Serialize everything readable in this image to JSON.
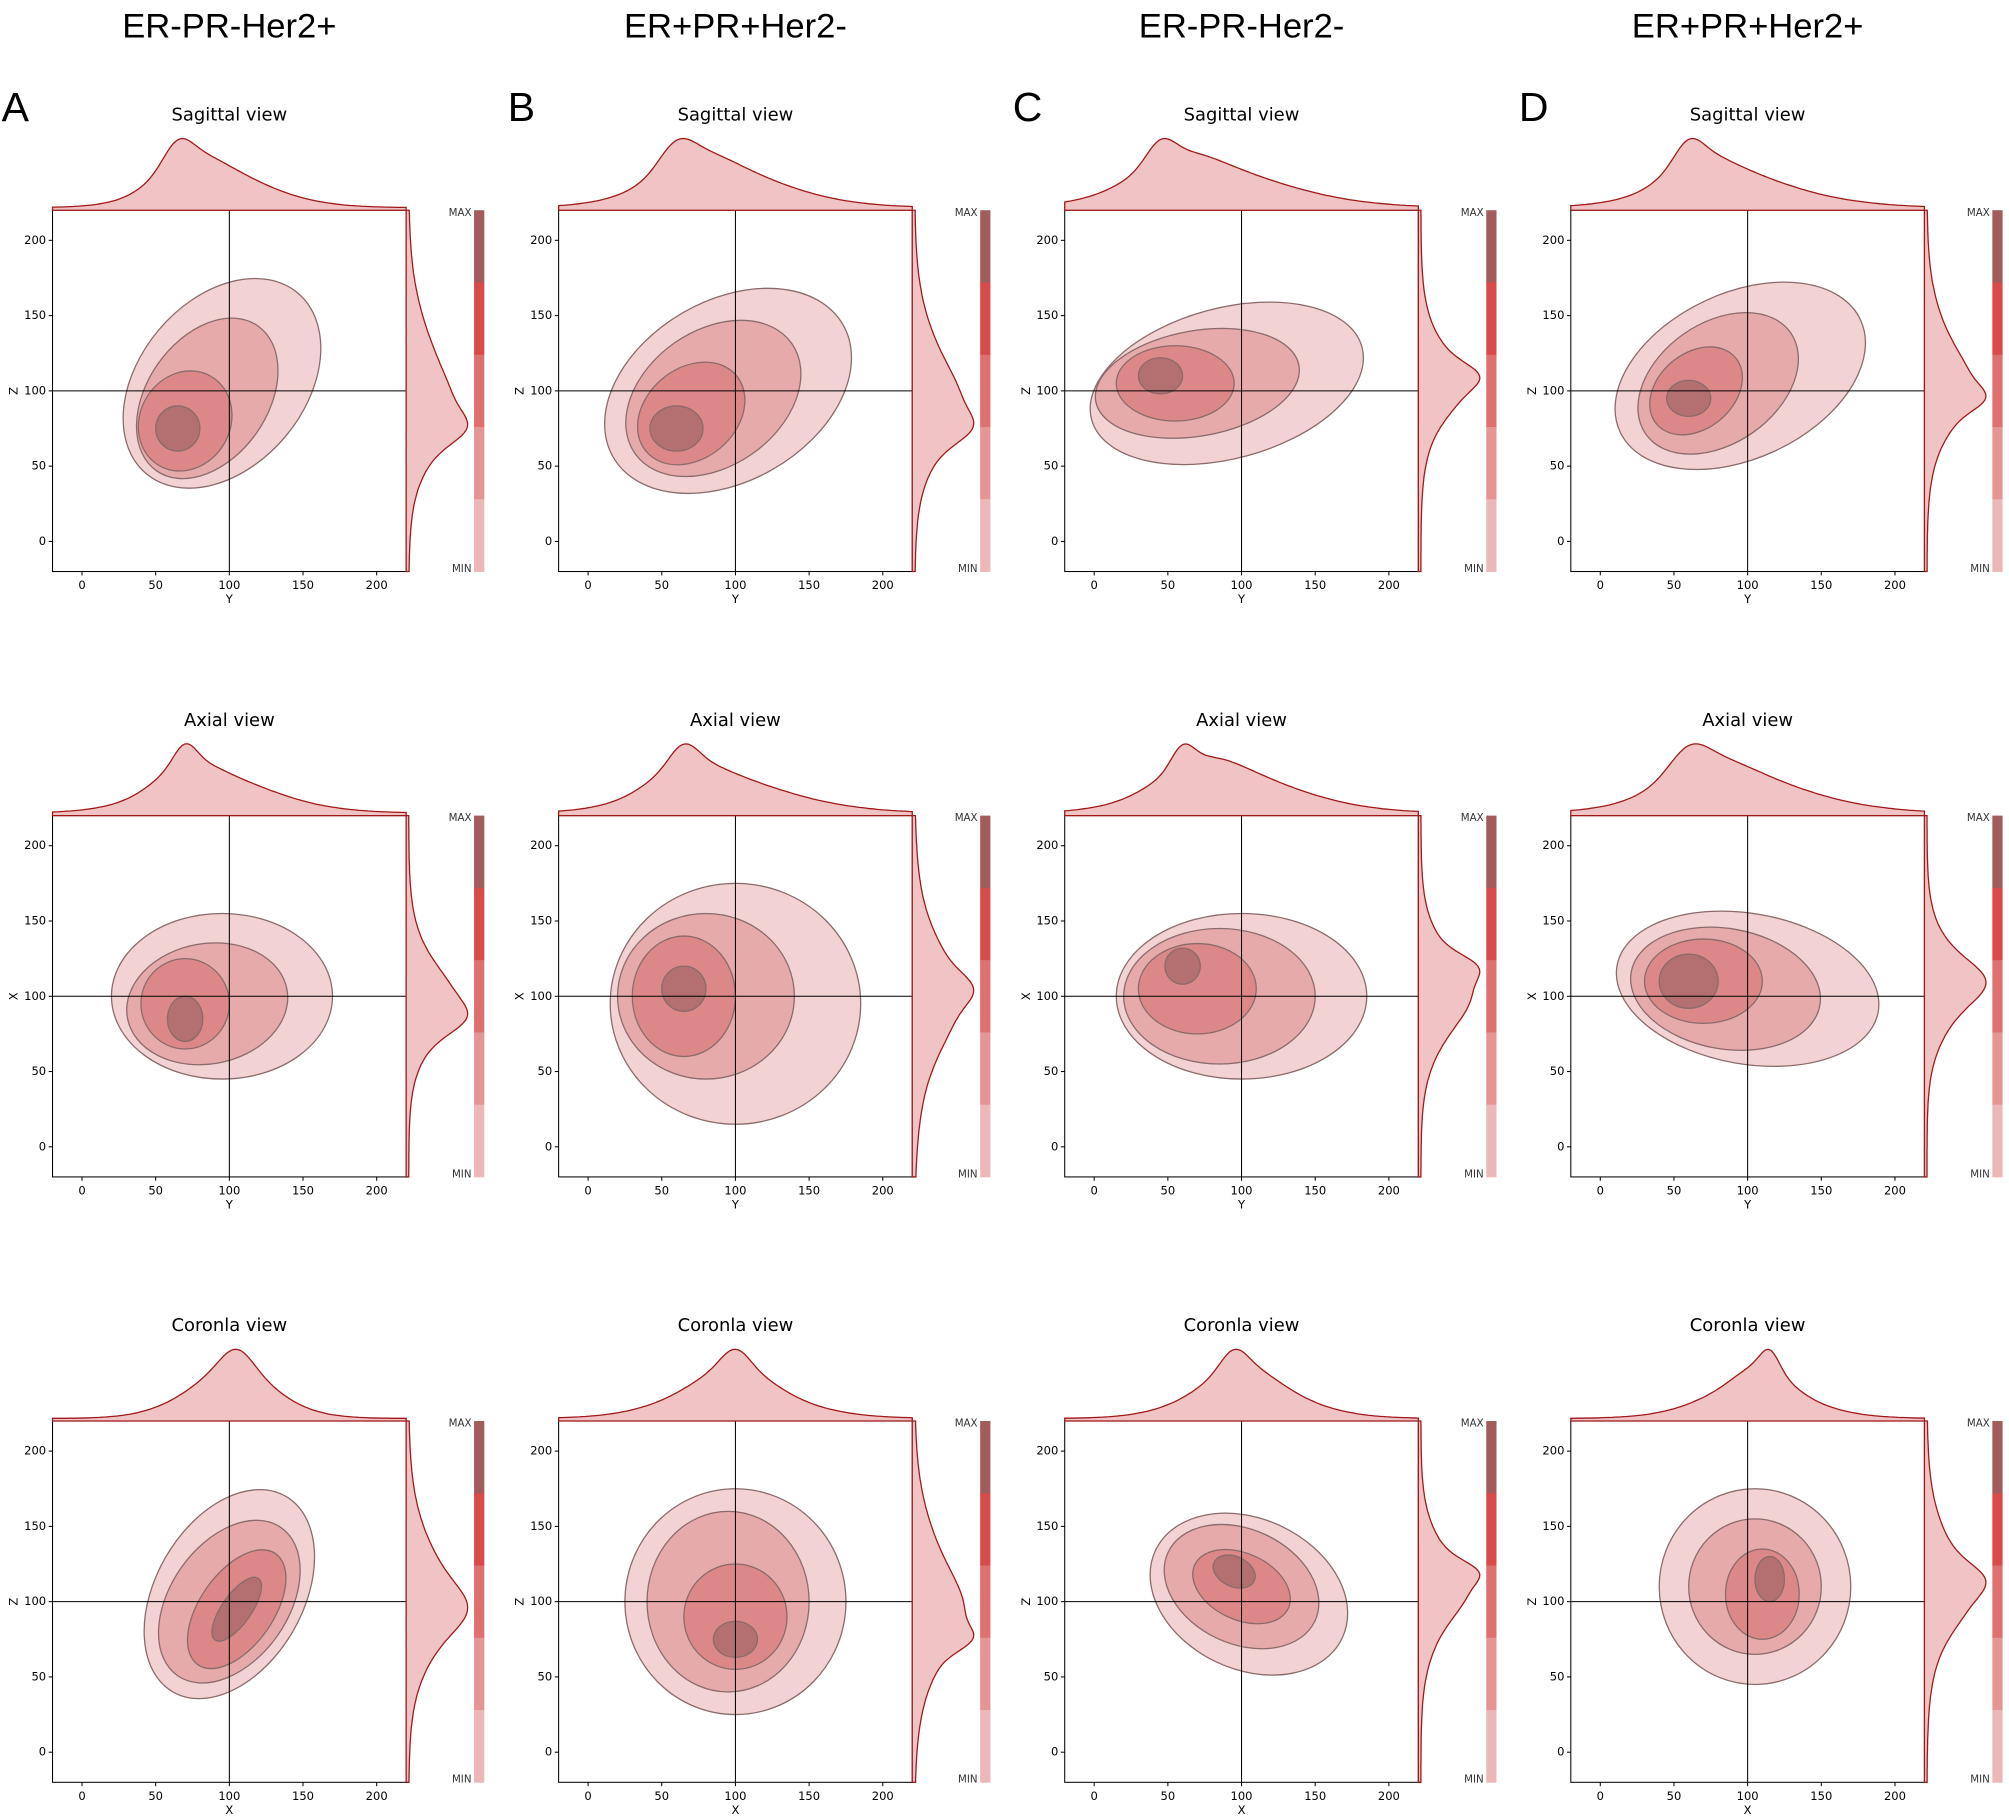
{
  "columns": [
    {
      "letter": "A",
      "title": "ER-PR-Her2+"
    },
    {
      "letter": "B",
      "title": "ER+PR+Her2-"
    },
    {
      "letter": "C",
      "title": "ER-PR-Her2-"
    },
    {
      "letter": "D",
      "title": "ER+PR+Her2+"
    }
  ],
  "chart_data": [
    {
      "type": "contour",
      "title": "Sagittal view",
      "xlabel": "Y",
      "ylabel": "Z",
      "xlim": [
        -20,
        220
      ],
      "ylim": [
        -20,
        220
      ],
      "xticks": [
        0,
        50,
        100,
        150,
        200
      ],
      "yticks": [
        0,
        50,
        100,
        150,
        200
      ],
      "crosshair": [
        100,
        100
      ],
      "colors": [
        "#edc3c3",
        "#e39c9c",
        "#d97c7c",
        "#a66868"
      ],
      "marginal_color": "#a01818",
      "colorbar": {
        "labels": [
          "MAX",
          "MIN"
        ],
        "colors": [
          "#a25c5c",
          "#d94a4a",
          "#df7070",
          "#e69595",
          "#ecb7b7"
        ]
      },
      "contours": [
        [
          95,
          105,
          80,
          55,
          50
        ],
        [
          85,
          95,
          60,
          40,
          55
        ],
        [
          70,
          80,
          35,
          30,
          60
        ],
        [
          65,
          75,
          15,
          15,
          0
        ]
      ]
    },
    {
      "type": "contour",
      "title": "Sagittal view",
      "xlabel": "Y",
      "ylabel": "Z",
      "xlim": [
        -20,
        220
      ],
      "ylim": [
        -20,
        220
      ],
      "xticks": [
        0,
        50,
        100,
        150,
        200
      ],
      "yticks": [
        0,
        50,
        100,
        150,
        200
      ],
      "crosshair": [
        100,
        100
      ],
      "colors": [
        "#edc3c3",
        "#e39c9c",
        "#d97c7c",
        "#a66868"
      ],
      "marginal_color": "#a01818",
      "colorbar": {
        "labels": [
          "MAX",
          "MIN"
        ],
        "colors": [
          "#a25c5c",
          "#d94a4a",
          "#df7070",
          "#e69595",
          "#ecb7b7"
        ]
      },
      "contours": [
        [
          95,
          100,
          90,
          60,
          30
        ],
        [
          85,
          95,
          65,
          45,
          35
        ],
        [
          70,
          85,
          40,
          30,
          40
        ],
        [
          60,
          75,
          18,
          15,
          0
        ]
      ]
    },
    {
      "type": "contour",
      "title": "Sagittal view",
      "xlabel": "Y",
      "ylabel": "Z",
      "xlim": [
        -20,
        220
      ],
      "ylim": [
        -20,
        220
      ],
      "xticks": [
        0,
        50,
        100,
        150,
        200
      ],
      "yticks": [
        0,
        50,
        100,
        150,
        200
      ],
      "crosshair": [
        100,
        100
      ],
      "colors": [
        "#edc3c3",
        "#e39c9c",
        "#d97c7c",
        "#a66868"
      ],
      "marginal_color": "#a01818",
      "colorbar": {
        "labels": [
          "MAX",
          "MIN"
        ],
        "colors": [
          "#a25c5c",
          "#d94a4a",
          "#df7070",
          "#e69595",
          "#ecb7b7"
        ]
      },
      "contours": [
        [
          90,
          105,
          95,
          50,
          15
        ],
        [
          70,
          105,
          70,
          35,
          10
        ],
        [
          55,
          105,
          40,
          25,
          0
        ],
        [
          45,
          110,
          15,
          12,
          0
        ]
      ]
    },
    {
      "type": "contour",
      "title": "Sagittal view",
      "xlabel": "Y",
      "ylabel": "Z",
      "xlim": [
        -20,
        220
      ],
      "ylim": [
        -20,
        220
      ],
      "xticks": [
        0,
        50,
        100,
        150,
        200
      ],
      "yticks": [
        0,
        50,
        100,
        150,
        200
      ],
      "crosshair": [
        100,
        100
      ],
      "colors": [
        "#edc3c3",
        "#e39c9c",
        "#d97c7c",
        "#a66868"
      ],
      "marginal_color": "#a01818",
      "colorbar": {
        "labels": [
          "MAX",
          "MIN"
        ],
        "colors": [
          "#a25c5c",
          "#d94a4a",
          "#df7070",
          "#e69595",
          "#ecb7b7"
        ]
      },
      "contours": [
        [
          95,
          110,
          90,
          55,
          25
        ],
        [
          80,
          105,
          60,
          40,
          35
        ],
        [
          65,
          100,
          35,
          25,
          40
        ],
        [
          60,
          95,
          15,
          12,
          0
        ]
      ]
    },
    {
      "type": "contour",
      "title": "Axial view",
      "xlabel": "Y",
      "ylabel": "X",
      "xlim": [
        -20,
        220
      ],
      "ylim": [
        -20,
        220
      ],
      "xticks": [
        0,
        50,
        100,
        150,
        200
      ],
      "yticks": [
        0,
        50,
        100,
        150,
        200
      ],
      "crosshair": [
        100,
        100
      ],
      "colors": [
        "#edc3c3",
        "#e39c9c",
        "#d97c7c",
        "#a66868"
      ],
      "marginal_color": "#a01818",
      "colorbar": {
        "labels": [
          "MAX",
          "MIN"
        ],
        "colors": [
          "#a25c5c",
          "#d94a4a",
          "#df7070",
          "#e69595",
          "#ecb7b7"
        ]
      },
      "contours": [
        [
          95,
          100,
          75,
          55,
          0
        ],
        [
          85,
          95,
          55,
          40,
          10
        ],
        [
          70,
          95,
          30,
          30,
          0
        ],
        [
          70,
          85,
          12,
          15,
          0
        ]
      ]
    },
    {
      "type": "contour",
      "title": "Axial view",
      "xlabel": "Y",
      "ylabel": "X",
      "xlim": [
        -20,
        220
      ],
      "ylim": [
        -20,
        220
      ],
      "xticks": [
        0,
        50,
        100,
        150,
        200
      ],
      "yticks": [
        0,
        50,
        100,
        150,
        200
      ],
      "crosshair": [
        100,
        100
      ],
      "colors": [
        "#edc3c3",
        "#e39c9c",
        "#d97c7c",
        "#a66868"
      ],
      "marginal_color": "#a01818",
      "colorbar": {
        "labels": [
          "MAX",
          "MIN"
        ],
        "colors": [
          "#a25c5c",
          "#d94a4a",
          "#df7070",
          "#e69595",
          "#ecb7b7"
        ]
      },
      "contours": [
        [
          100,
          95,
          85,
          80,
          0
        ],
        [
          80,
          100,
          60,
          55,
          0
        ],
        [
          65,
          100,
          35,
          40,
          0
        ],
        [
          65,
          105,
          15,
          15,
          0
        ]
      ]
    },
    {
      "type": "contour",
      "title": "Axial view",
      "xlabel": "Y",
      "ylabel": "X",
      "xlim": [
        -20,
        220
      ],
      "ylim": [
        -20,
        220
      ],
      "xticks": [
        0,
        50,
        100,
        150,
        200
      ],
      "yticks": [
        0,
        50,
        100,
        150,
        200
      ],
      "crosshair": [
        100,
        100
      ],
      "colors": [
        "#edc3c3",
        "#e39c9c",
        "#d97c7c",
        "#a66868"
      ],
      "marginal_color": "#a01818",
      "colorbar": {
        "labels": [
          "MAX",
          "MIN"
        ],
        "colors": [
          "#a25c5c",
          "#d94a4a",
          "#df7070",
          "#e69595",
          "#ecb7b7"
        ]
      },
      "contours": [
        [
          100,
          100,
          85,
          55,
          0
        ],
        [
          85,
          100,
          65,
          45,
          0
        ],
        [
          70,
          105,
          40,
          30,
          0
        ],
        [
          60,
          120,
          12,
          12,
          0
        ]
      ]
    },
    {
      "type": "contour",
      "title": "Axial view",
      "xlabel": "Y",
      "ylabel": "X",
      "xlim": [
        -20,
        220
      ],
      "ylim": [
        -20,
        220
      ],
      "xticks": [
        0,
        50,
        100,
        150,
        200
      ],
      "yticks": [
        0,
        50,
        100,
        150,
        200
      ],
      "crosshair": [
        100,
        100
      ],
      "colors": [
        "#edc3c3",
        "#e39c9c",
        "#d97c7c",
        "#a66868"
      ],
      "marginal_color": "#a01818",
      "colorbar": {
        "labels": [
          "MAX",
          "MIN"
        ],
        "colors": [
          "#a25c5c",
          "#d94a4a",
          "#df7070",
          "#e69595",
          "#ecb7b7"
        ]
      },
      "contours": [
        [
          100,
          105,
          90,
          50,
          -10
        ],
        [
          85,
          105,
          65,
          40,
          -10
        ],
        [
          70,
          110,
          40,
          28,
          0
        ],
        [
          60,
          110,
          20,
          18,
          0
        ]
      ]
    },
    {
      "type": "contour",
      "title": "Coronla view",
      "xlabel": "X",
      "ylabel": "Z",
      "xlim": [
        -20,
        220
      ],
      "ylim": [
        -20,
        220
      ],
      "xticks": [
        0,
        50,
        100,
        150,
        200
      ],
      "yticks": [
        0,
        50,
        100,
        150,
        200
      ],
      "crosshair": [
        100,
        100
      ],
      "colors": [
        "#edc3c3",
        "#e39c9c",
        "#d97c7c",
        "#a66868"
      ],
      "marginal_color": "#a01818",
      "colorbar": {
        "labels": [
          "MAX",
          "MIN"
        ],
        "colors": [
          "#a25c5c",
          "#d94a4a",
          "#df7070",
          "#e69595",
          "#ecb7b7"
        ]
      },
      "contours": [
        [
          100,
          105,
          50,
          75,
          -30
        ],
        [
          100,
          100,
          40,
          60,
          -35
        ],
        [
          105,
          95,
          25,
          45,
          -35
        ],
        [
          105,
          95,
          10,
          25,
          -35
        ]
      ]
    },
    {
      "type": "contour",
      "title": "Coronla view",
      "xlabel": "X",
      "ylabel": "Z",
      "xlim": [
        -20,
        220
      ],
      "ylim": [
        -20,
        220
      ],
      "xticks": [
        0,
        50,
        100,
        150,
        200
      ],
      "yticks": [
        0,
        50,
        100,
        150,
        200
      ],
      "crosshair": [
        100,
        100
      ],
      "colors": [
        "#edc3c3",
        "#e39c9c",
        "#d97c7c",
        "#a66868"
      ],
      "marginal_color": "#a01818",
      "colorbar": {
        "labels": [
          "MAX",
          "MIN"
        ],
        "colors": [
          "#a25c5c",
          "#d94a4a",
          "#df7070",
          "#e69595",
          "#ecb7b7"
        ]
      },
      "contours": [
        [
          100,
          100,
          75,
          75,
          0
        ],
        [
          95,
          100,
          55,
          60,
          0
        ],
        [
          100,
          90,
          35,
          35,
          0
        ],
        [
          100,
          75,
          15,
          12,
          0
        ]
      ]
    },
    {
      "type": "contour",
      "title": "Coronla view",
      "xlabel": "X",
      "ylabel": "Z",
      "xlim": [
        -20,
        220
      ],
      "ylim": [
        -20,
        220
      ],
      "xticks": [
        0,
        50,
        100,
        150,
        200
      ],
      "yticks": [
        0,
        50,
        100,
        150,
        200
      ],
      "crosshair": [
        100,
        100
      ],
      "colors": [
        "#edc3c3",
        "#e39c9c",
        "#d97c7c",
        "#a66868"
      ],
      "marginal_color": "#a01818",
      "colorbar": {
        "labels": [
          "MAX",
          "MIN"
        ],
        "colors": [
          "#a25c5c",
          "#d94a4a",
          "#df7070",
          "#e69595",
          "#ecb7b7"
        ]
      },
      "contours": [
        [
          105,
          105,
          70,
          50,
          -25
        ],
        [
          100,
          110,
          55,
          38,
          -25
        ],
        [
          100,
          110,
          35,
          22,
          -25
        ],
        [
          95,
          120,
          15,
          10,
          -25
        ]
      ]
    },
    {
      "type": "contour",
      "title": "Coronla view",
      "xlabel": "X",
      "ylabel": "Z",
      "xlim": [
        -20,
        220
      ],
      "ylim": [
        -20,
        220
      ],
      "xticks": [
        0,
        50,
        100,
        150,
        200
      ],
      "yticks": [
        0,
        50,
        100,
        150,
        200
      ],
      "crosshair": [
        100,
        100
      ],
      "colors": [
        "#edc3c3",
        "#e39c9c",
        "#d97c7c",
        "#a66868"
      ],
      "marginal_color": "#a01818",
      "colorbar": {
        "labels": [
          "MAX",
          "MIN"
        ],
        "colors": [
          "#a25c5c",
          "#d94a4a",
          "#df7070",
          "#e69595",
          "#ecb7b7"
        ]
      },
      "contours": [
        [
          105,
          110,
          65,
          65,
          0
        ],
        [
          105,
          110,
          45,
          45,
          0
        ],
        [
          110,
          105,
          25,
          30,
          0
        ],
        [
          115,
          115,
          10,
          15,
          0
        ]
      ]
    }
  ]
}
